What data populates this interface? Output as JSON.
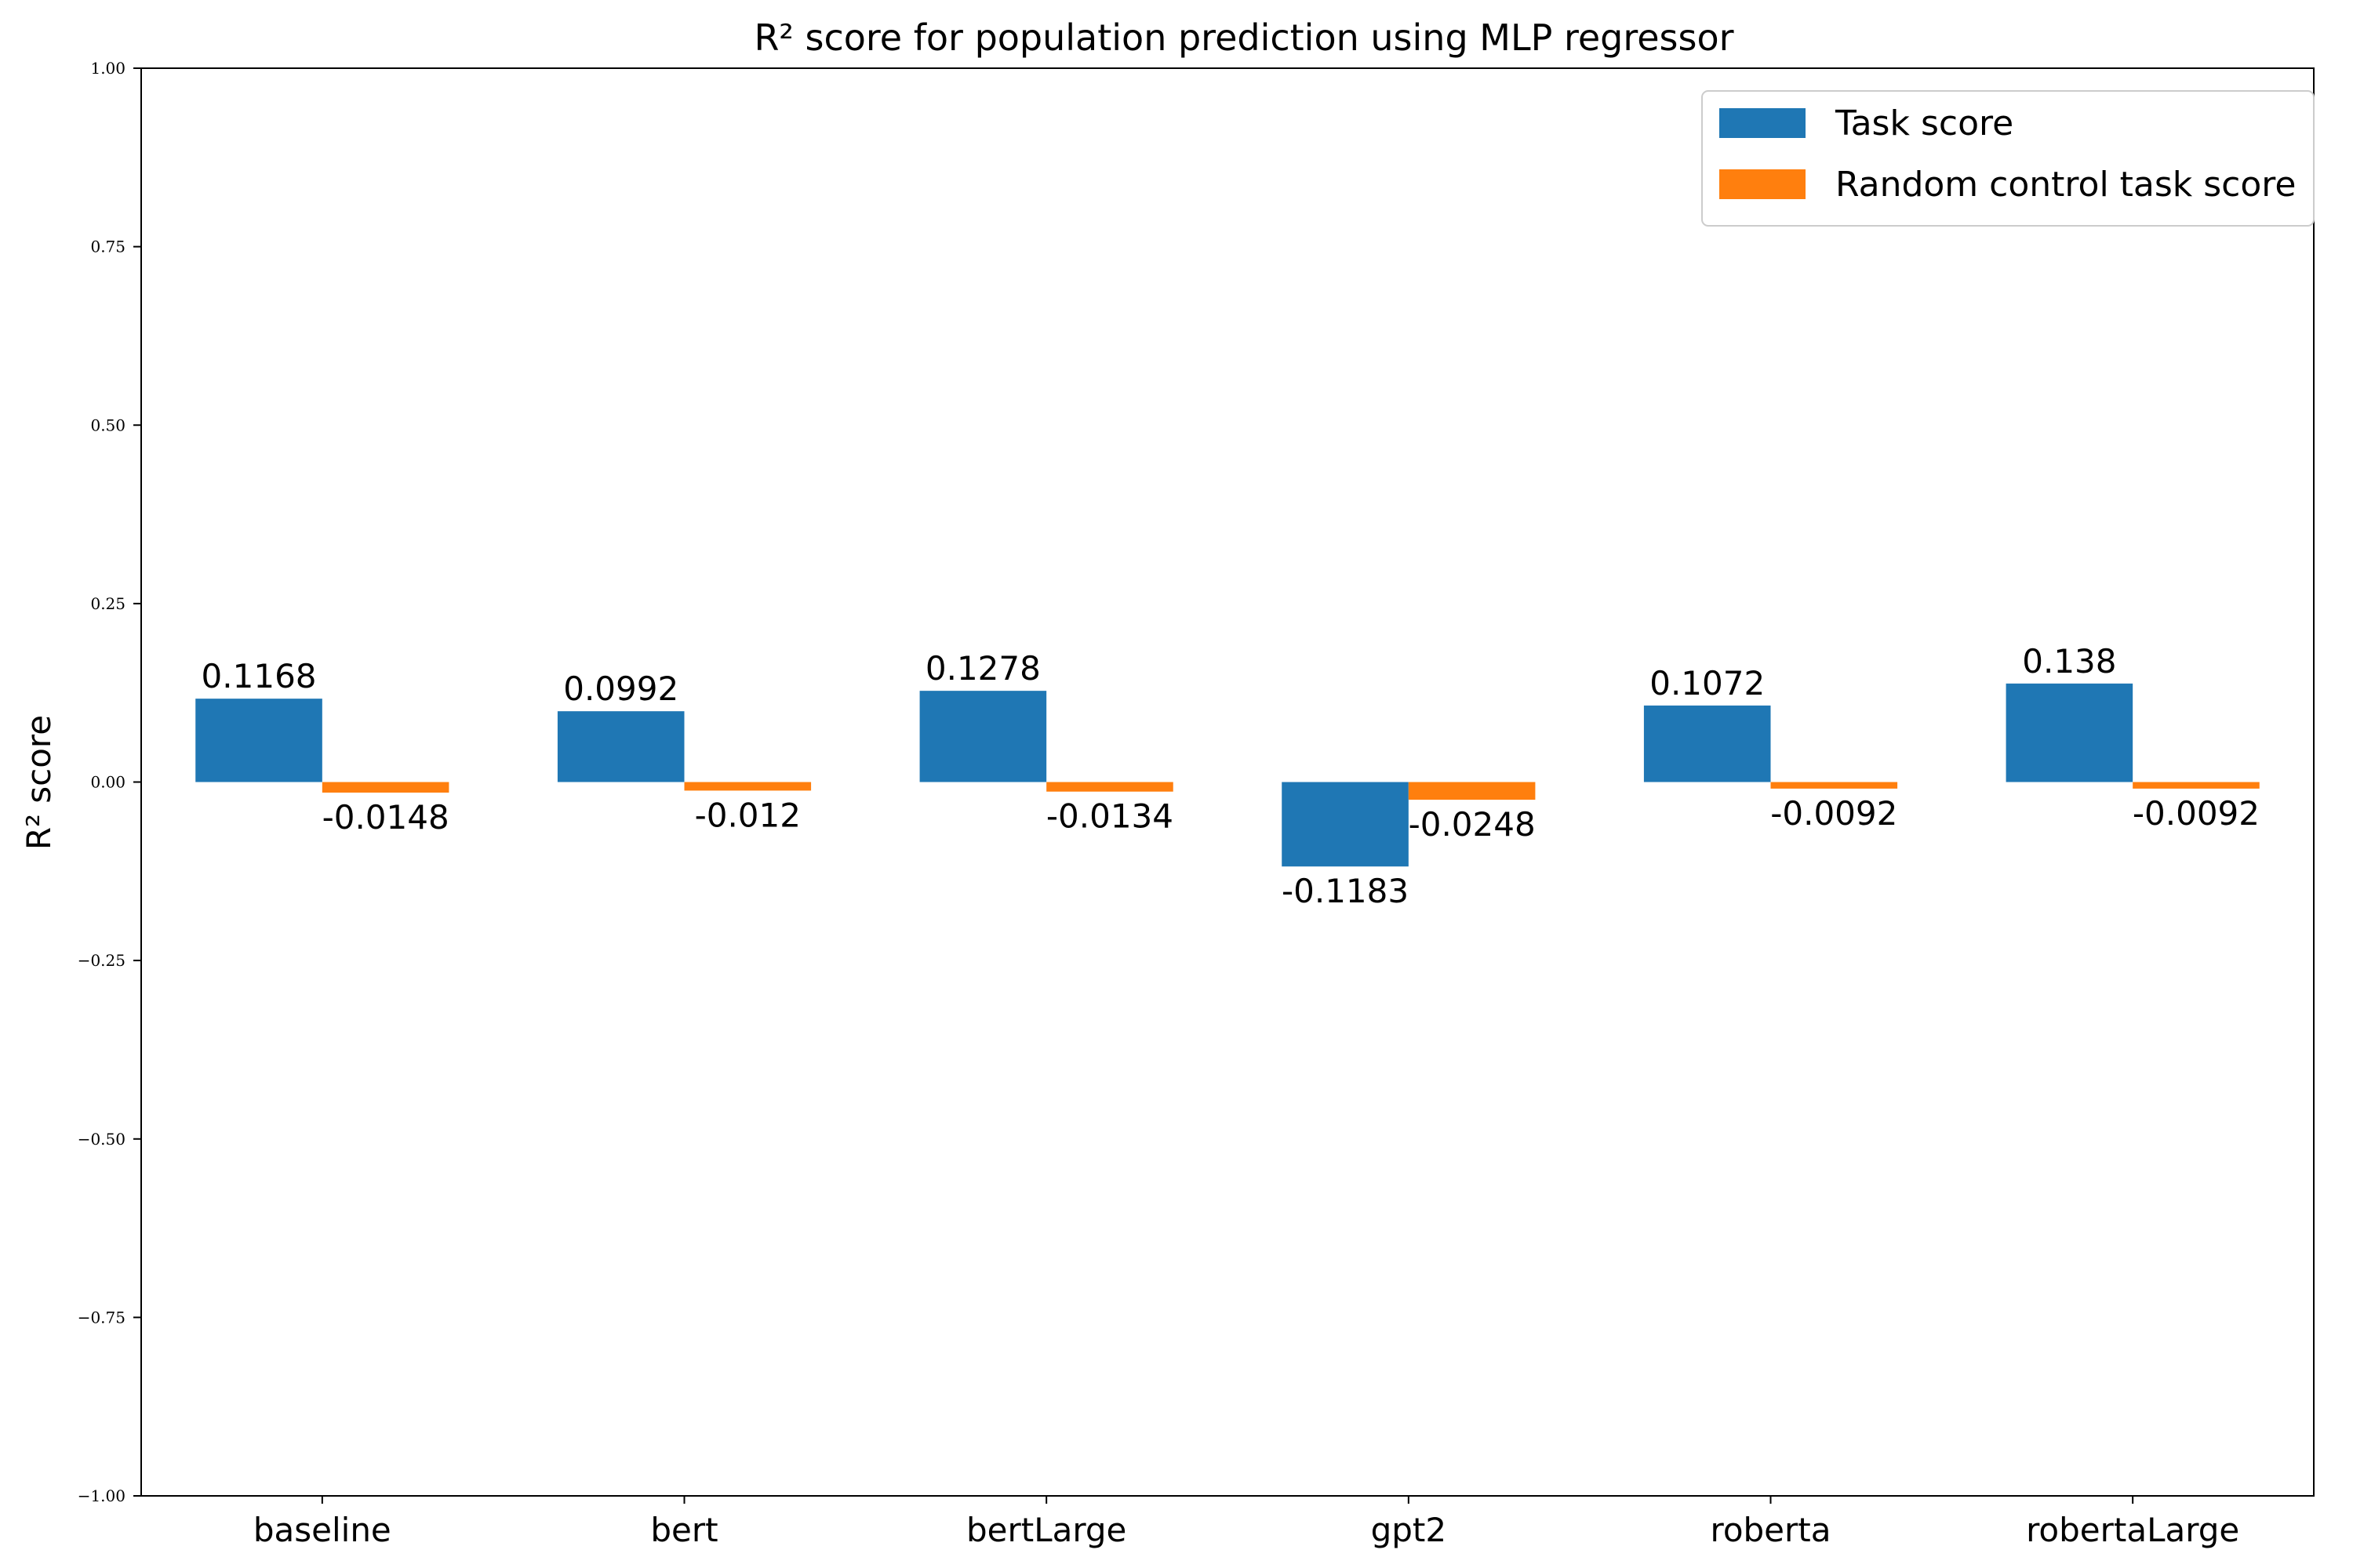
{
  "chart_data": {
    "type": "bar",
    "title": "R² score for population prediction using MLP regressor",
    "xlabel": "",
    "ylabel": "R² score",
    "ylim": [
      -1.0,
      1.0
    ],
    "yticks": [
      -1.0,
      -0.75,
      -0.5,
      -0.25,
      0.0,
      0.25,
      0.5,
      0.75,
      1.0
    ],
    "ytick_labels": [
      "−1.00",
      "−0.75",
      "−0.50",
      "−0.25",
      "0.00",
      "0.25",
      "0.50",
      "0.75",
      "1.00"
    ],
    "categories": [
      "baseline",
      "bert",
      "bertLarge",
      "gpt2",
      "roberta",
      "robertaLarge"
    ],
    "series": [
      {
        "name": "Task score",
        "color": "#1f77b4",
        "values": [
          0.1168,
          0.0992,
          0.1278,
          -0.1183,
          0.1072,
          0.138
        ],
        "labels": [
          "0.1168",
          "0.0992",
          "0.1278",
          "-0.1183",
          "0.1072",
          "0.138"
        ]
      },
      {
        "name": "Random control task score",
        "color": "#ff7f0e",
        "values": [
          -0.0148,
          -0.012,
          -0.0134,
          -0.0248,
          -0.0092,
          -0.0092
        ],
        "labels": [
          "-0.0148",
          "-0.012",
          "-0.0134",
          "-0.0248",
          "-0.0092",
          "-0.0092"
        ]
      }
    ],
    "grid": false,
    "legend": "top-right"
  }
}
